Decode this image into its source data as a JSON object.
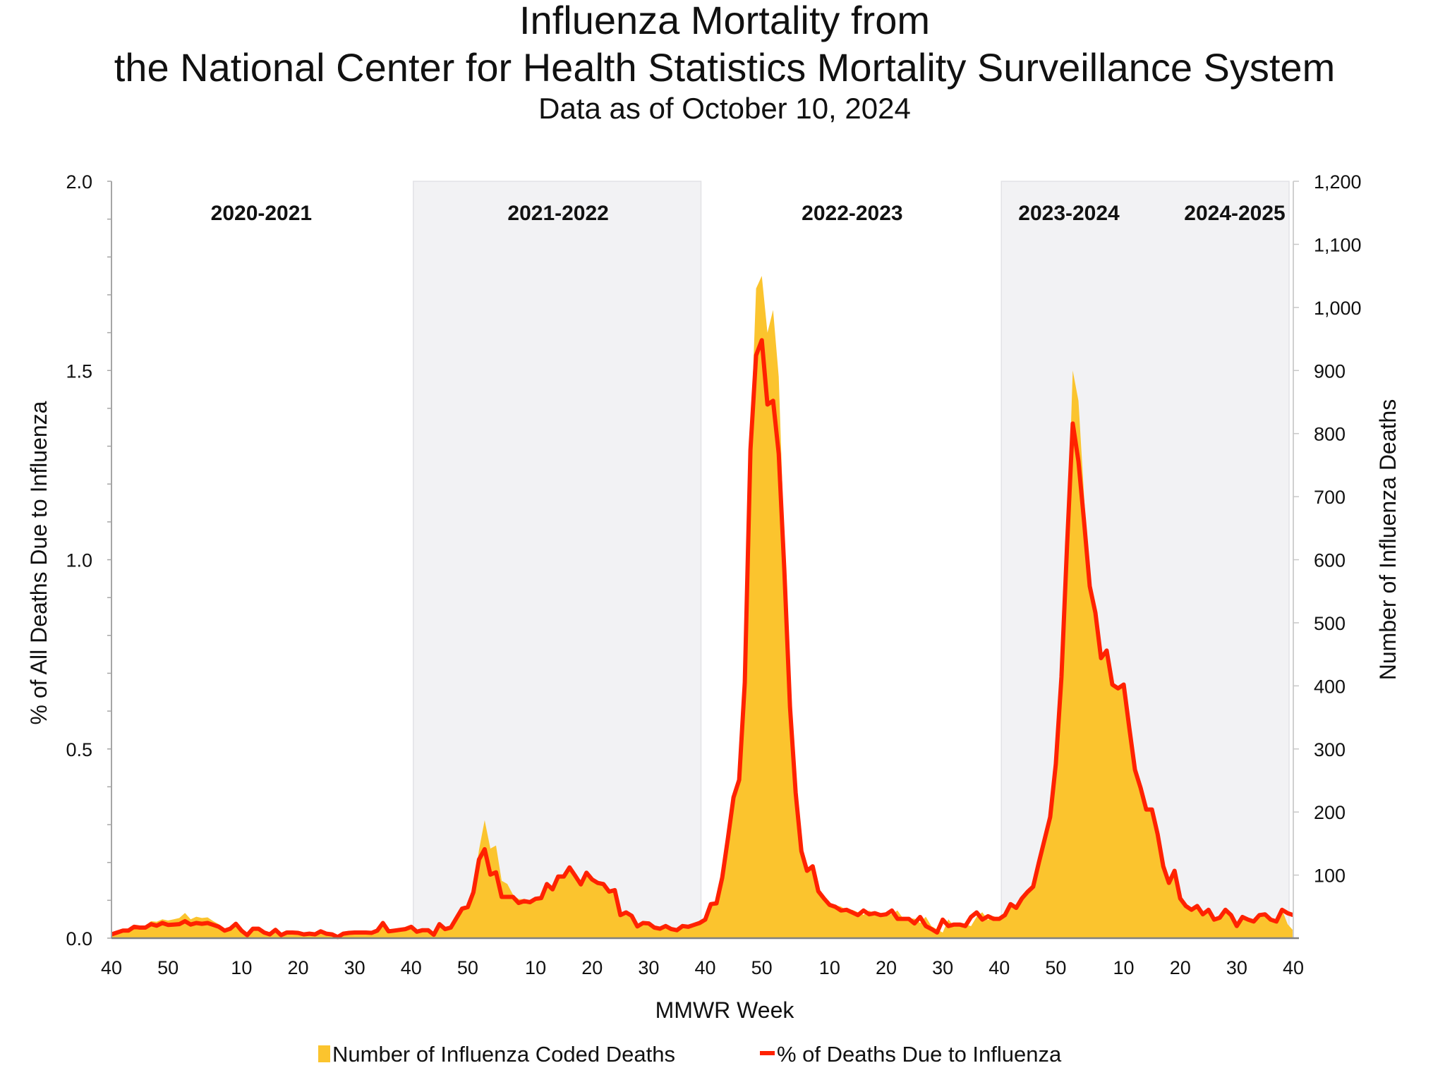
{
  "chart_data": {
    "type": "area+line",
    "title_line1": "Influenza Mortality from",
    "title_line2": "the National Center for Health Statistics Mortality Surveillance System",
    "subtitle": "Data as of October 10, 2024",
    "xlabel": "MMWR Week",
    "ylabel_left": "% of All Deaths Due to Influenza",
    "ylabel_right": "Number of Influenza Deaths",
    "ylim_left": [
      0,
      2.0
    ],
    "ylim_right": [
      0,
      1200
    ],
    "left_ticks": [
      "0.0",
      "0.5",
      "1.0",
      "1.5",
      "2.0"
    ],
    "right_ticks": [
      "100",
      "200",
      "300",
      "400",
      "500",
      "600",
      "700",
      "800",
      "900",
      "1,000",
      "1,100",
      "1,200"
    ],
    "x_tick_labels": [
      "40",
      "50",
      "10",
      "20",
      "30",
      "40",
      "50",
      "10",
      "20",
      "30",
      "40",
      "50",
      "10",
      "20",
      "30",
      "40",
      "50",
      "10",
      "20",
      "30",
      "40"
    ],
    "seasons": [
      {
        "label": "2020-2021",
        "shaded": false
      },
      {
        "label": "2021-2022",
        "shaded": true
      },
      {
        "label": "2022-2023",
        "shaded": false
      },
      {
        "label": "2023-2024",
        "shaded": true
      },
      {
        "label": "2024-2025",
        "shaded": false
      }
    ],
    "grid": false,
    "legend_position": "bottom",
    "colors": {
      "deaths_area": "#FBC42E",
      "pct_line": "#FF2200",
      "season_shade": "#F2F2F4"
    },
    "series": [
      {
        "name": "Number of Influenza Coded Deaths",
        "axis": "right",
        "type": "area",
        "values": [
          6,
          9,
          12,
          13,
          18,
          18,
          20,
          27,
          26,
          30,
          28,
          30,
          32,
          40,
          30,
          34,
          32,
          33,
          27,
          22,
          13,
          15,
          22,
          12,
          6,
          14,
          14,
          9,
          6,
          12,
          6,
          9,
          9,
          8,
          6,
          7,
          6,
          10,
          7,
          6,
          2,
          7,
          8,
          9,
          9,
          9,
          8,
          12,
          24,
          11,
          12,
          13,
          15,
          15,
          10,
          12,
          12,
          6,
          20,
          14,
          17,
          32,
          50,
          52,
          75,
          140,
          187,
          142,
          147,
          91,
          86,
          69,
          62,
          62,
          60,
          63,
          64,
          86,
          78,
          98,
          98,
          112,
          100,
          86,
          104,
          94,
          88,
          86,
          74,
          76,
          37,
          41,
          35,
          19,
          24,
          23,
          17,
          15,
          19,
          14,
          13,
          19,
          18,
          21,
          24,
          30,
          55,
          56,
          96,
          160,
          225,
          252,
          405,
          780,
          1030,
          1050,
          960,
          996,
          890,
          620,
          370,
          230,
          140,
          108,
          115,
          75,
          62,
          53,
          52,
          50,
          44,
          45,
          41,
          37,
          44,
          38,
          40,
          37,
          38,
          44,
          31,
          31,
          31,
          24,
          34,
          19,
          14,
          9,
          30,
          19,
          22,
          22,
          19,
          34,
          41,
          29,
          35,
          31,
          37,
          54,
          48,
          63,
          73,
          82,
          120,
          156,
          192,
          276,
          414,
          624,
          900,
          852,
          700,
          560,
          515,
          445,
          456,
          402,
          396,
          402,
          333,
          267,
          238,
          204,
          204,
          165,
          114,
          88,
          107,
          63,
          51,
          45,
          51,
          38,
          45,
          29,
          32,
          45,
          37,
          19,
          34,
          29,
          26,
          37,
          38,
          29,
          26,
          45,
          22,
          12
        ]
      },
      {
        "name": "% of Deaths Due to Influenza",
        "axis": "left",
        "type": "line",
        "values": [
          0.01,
          0.015,
          0.02,
          0.02,
          0.03,
          0.028,
          0.028,
          0.037,
          0.033,
          0.04,
          0.035,
          0.036,
          0.037,
          0.045,
          0.036,
          0.04,
          0.038,
          0.04,
          0.035,
          0.03,
          0.02,
          0.025,
          0.038,
          0.02,
          0.008,
          0.025,
          0.025,
          0.015,
          0.01,
          0.022,
          0.008,
          0.015,
          0.015,
          0.014,
          0.01,
          0.012,
          0.01,
          0.018,
          0.012,
          0.01,
          0.003,
          0.012,
          0.014,
          0.015,
          0.015,
          0.015,
          0.014,
          0.02,
          0.04,
          0.018,
          0.02,
          0.022,
          0.024,
          0.03,
          0.017,
          0.021,
          0.021,
          0.009,
          0.037,
          0.024,
          0.028,
          0.053,
          0.078,
          0.082,
          0.121,
          0.208,
          0.235,
          0.168,
          0.174,
          0.109,
          0.109,
          0.109,
          0.093,
          0.098,
          0.095,
          0.104,
          0.106,
          0.143,
          0.129,
          0.163,
          0.163,
          0.187,
          0.165,
          0.142,
          0.173,
          0.155,
          0.146,
          0.143,
          0.123,
          0.127,
          0.061,
          0.068,
          0.059,
          0.031,
          0.04,
          0.039,
          0.028,
          0.025,
          0.032,
          0.024,
          0.021,
          0.032,
          0.03,
          0.035,
          0.04,
          0.049,
          0.09,
          0.092,
          0.16,
          0.263,
          0.372,
          0.418,
          0.676,
          1.29,
          1.54,
          1.58,
          1.41,
          1.42,
          1.28,
          0.97,
          0.61,
          0.384,
          0.23,
          0.178,
          0.19,
          0.124,
          0.105,
          0.088,
          0.083,
          0.073,
          0.075,
          0.068,
          0.061,
          0.073,
          0.063,
          0.066,
          0.061,
          0.063,
          0.073,
          0.051,
          0.051,
          0.051,
          0.039,
          0.056,
          0.032,
          0.024,
          0.015,
          0.049,
          0.032,
          0.036,
          0.036,
          0.032,
          0.056,
          0.068,
          0.049,
          0.058,
          0.051,
          0.051,
          0.061,
          0.09,
          0.08,
          0.105,
          0.122,
          0.136,
          0.2,
          0.26,
          0.32,
          0.46,
          0.69,
          1.04,
          1.36,
          1.26,
          1.1,
          0.93,
          0.86,
          0.74,
          0.76,
          0.67,
          0.66,
          0.67,
          0.555,
          0.445,
          0.397,
          0.34,
          0.34,
          0.275,
          0.19,
          0.146,
          0.178,
          0.105,
          0.085,
          0.075,
          0.085,
          0.063,
          0.075,
          0.049,
          0.054,
          0.075,
          0.061,
          0.032,
          0.056,
          0.049,
          0.044,
          0.061,
          0.063,
          0.049,
          0.044,
          0.075,
          0.066,
          0.061
        ]
      }
    ]
  }
}
